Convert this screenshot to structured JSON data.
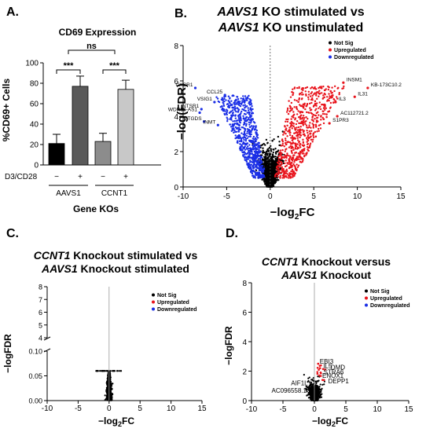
{
  "panels": {
    "A": {
      "label": "A.",
      "title": "CD69 Expression",
      "ylabel": "%CD69+ Cells",
      "xlabel": "Gene KOs",
      "stim_label": "D3/CD28",
      "stim_marks": [
        "−",
        "+",
        "−",
        "+"
      ],
      "group_labels": [
        "AAVS1",
        "CCNT1"
      ],
      "sig_labels": [
        "***",
        "ns",
        "***"
      ]
    },
    "B": {
      "label": "B.",
      "title_l1_italic": "AAVS1",
      "title_l1_rest": " KO stimulated vs",
      "title_l2_italic": "AAVS1",
      "title_l2_rest": " KO unstimulated",
      "ylabel": "−log(FDR)",
      "xlabel_main": "−log",
      "xlabel_sub": "2",
      "xlabel_end": "FC",
      "legend": [
        "Not Sig",
        "Upregulated",
        "Downregulated"
      ],
      "genes_left": [
        "CXCR1",
        "CCL25",
        "VSIG1",
        "NTSR1",
        "WDR86-AS1",
        "PTGDS",
        "INMT"
      ],
      "genes_right": [
        "INSM1",
        "KB-173C10.2",
        "IL31",
        "IL3",
        "AC112721.2",
        "S1PR3"
      ]
    },
    "C": {
      "label": "C.",
      "title_l1_italic": "CCNT1",
      "title_l1_rest": " Knockout stimulated vs",
      "title_l2_italic": "AAVS1",
      "title_l2_rest": " Knockout stimulated",
      "ylabel": "−logFDR",
      "xlabel_main": "−log",
      "xlabel_sub": "2",
      "xlabel_end": "FC",
      "legend": [
        "Not Sig",
        "Upregulated",
        "Downregulated"
      ]
    },
    "D": {
      "label": "D.",
      "title_l1_italic": "CCNT1",
      "title_l1_rest": " Knockout versus",
      "title_l2_italic": "AAVS1",
      "title_l2_rest": " Knockout",
      "ylabel": "−logFDR",
      "xlabel_main": "−log",
      "xlabel_sub": "2",
      "xlabel_end": "FC",
      "legend": [
        "Not Sig",
        "Upregulated",
        "Downregulated"
      ],
      "genes": [
        "EBI3",
        "IL5",
        "DMD",
        "STRA6",
        "ENOX1",
        "DEPP1",
        "AIF1L",
        "AC096558.1"
      ]
    }
  },
  "colors": {
    "not_sig": "#000000",
    "up": "#e8141c",
    "down": "#1a2ee6",
    "bar_black": "#000000",
    "bar_dark_gray": "#5a5a5a",
    "bar_gray": "#8c8c8c",
    "bar_light": "#c8c8c8"
  },
  "chart_data": [
    {
      "type": "bar",
      "title": "CD69 Expression",
      "ylabel": "%CD69+ Cells",
      "xlabel": "Gene KOs",
      "categories": [
        "AAVS1 −",
        "AAVS1 +",
        "CCNT1 −",
        "CCNT1 +"
      ],
      "values": [
        21,
        77,
        23,
        74
      ],
      "errors": [
        9,
        10,
        8,
        9
      ],
      "ylim": [
        0,
        100
      ],
      "yticks": [
        0,
        20,
        40,
        60,
        80,
        100
      ]
    },
    {
      "type": "scatter",
      "title": "AAVS1 KO stimulated vs AAVS1 KO unstimulated",
      "xlabel": "−log2FC",
      "ylabel": "−log(FDR)",
      "xlim": [
        -10,
        15
      ],
      "ylim": [
        0,
        8
      ],
      "xticks": [
        -10,
        -5,
        0,
        5,
        10,
        15
      ],
      "yticks": [
        0,
        2,
        4,
        6,
        8
      ],
      "series": [
        {
          "name": "Not Sig"
        },
        {
          "name": "Upregulated"
        },
        {
          "name": "Downregulated"
        }
      ],
      "labeled_points": [
        {
          "label": "CXCR1",
          "x": -8.6,
          "y": 5.6
        },
        {
          "label": "CCL25",
          "x": -5.2,
          "y": 5.2
        },
        {
          "label": "VSIG1",
          "x": -6.4,
          "y": 4.8
        },
        {
          "label": "NTSR1",
          "x": -7.9,
          "y": 4.4
        },
        {
          "label": "WDR86-AS1",
          "x": -8.1,
          "y": 4.2
        },
        {
          "label": "PTGDS",
          "x": -7.6,
          "y": 3.7
        },
        {
          "label": "INMT",
          "x": -6.0,
          "y": 3.5
        },
        {
          "label": "INSM1",
          "x": 8.4,
          "y": 5.9
        },
        {
          "label": "KB-173C10.2",
          "x": 11.2,
          "y": 5.6
        },
        {
          "label": "IL31",
          "x": 9.7,
          "y": 5.1
        },
        {
          "label": "IL3",
          "x": 7.5,
          "y": 4.8
        },
        {
          "label": "AC112721.2",
          "x": 7.7,
          "y": 4.0
        },
        {
          "label": "S1PR3",
          "x": 6.8,
          "y": 3.6
        }
      ]
    },
    {
      "type": "scatter",
      "title": "CCNT1 Knockout stimulated vs AAVS1 Knockout stimulated",
      "xlabel": "−log2FC",
      "ylabel": "−logFDR",
      "xlim": [
        -10,
        15
      ],
      "ylim_lower": [
        0,
        0.1
      ],
      "ylim_upper": [
        4,
        8
      ],
      "xticks": [
        -10,
        -5,
        0,
        5,
        10,
        15
      ],
      "yticks": [
        0.0,
        0.05,
        0.1,
        4,
        5,
        6,
        7,
        8
      ],
      "series": [
        {
          "name": "Not Sig"
        },
        {
          "name": "Upregulated"
        },
        {
          "name": "Downregulated"
        }
      ]
    },
    {
      "type": "scatter",
      "title": "CCNT1 Knockout versus AAVS1 Knockout",
      "xlabel": "−log2FC",
      "ylabel": "−logFDR",
      "xlim": [
        -10,
        15
      ],
      "ylim": [
        0,
        8
      ],
      "xticks": [
        -10,
        -5,
        0,
        5,
        10,
        15
      ],
      "yticks": [
        0,
        2,
        4,
        6,
        8
      ],
      "series": [
        {
          "name": "Not Sig"
        },
        {
          "name": "Upregulated"
        },
        {
          "name": "Downregulated"
        }
      ],
      "labeled_points": [
        {
          "label": "EBI3",
          "x": 0.6,
          "y": 2.5
        },
        {
          "label": "IL5",
          "x": 0.9,
          "y": 2.2
        },
        {
          "label": "DMD",
          "x": 1.7,
          "y": 2.1
        },
        {
          "label": "STRA6",
          "x": 1.0,
          "y": 1.9
        },
        {
          "label": "ENOX1",
          "x": 0.8,
          "y": 1.7
        },
        {
          "label": "DEPP1",
          "x": 1.3,
          "y": 1.4
        },
        {
          "label": "AIF1L",
          "x": -0.6,
          "y": 1.0
        },
        {
          "label": "AC096558.1",
          "x": -0.8,
          "y": 0.7
        }
      ]
    }
  ]
}
